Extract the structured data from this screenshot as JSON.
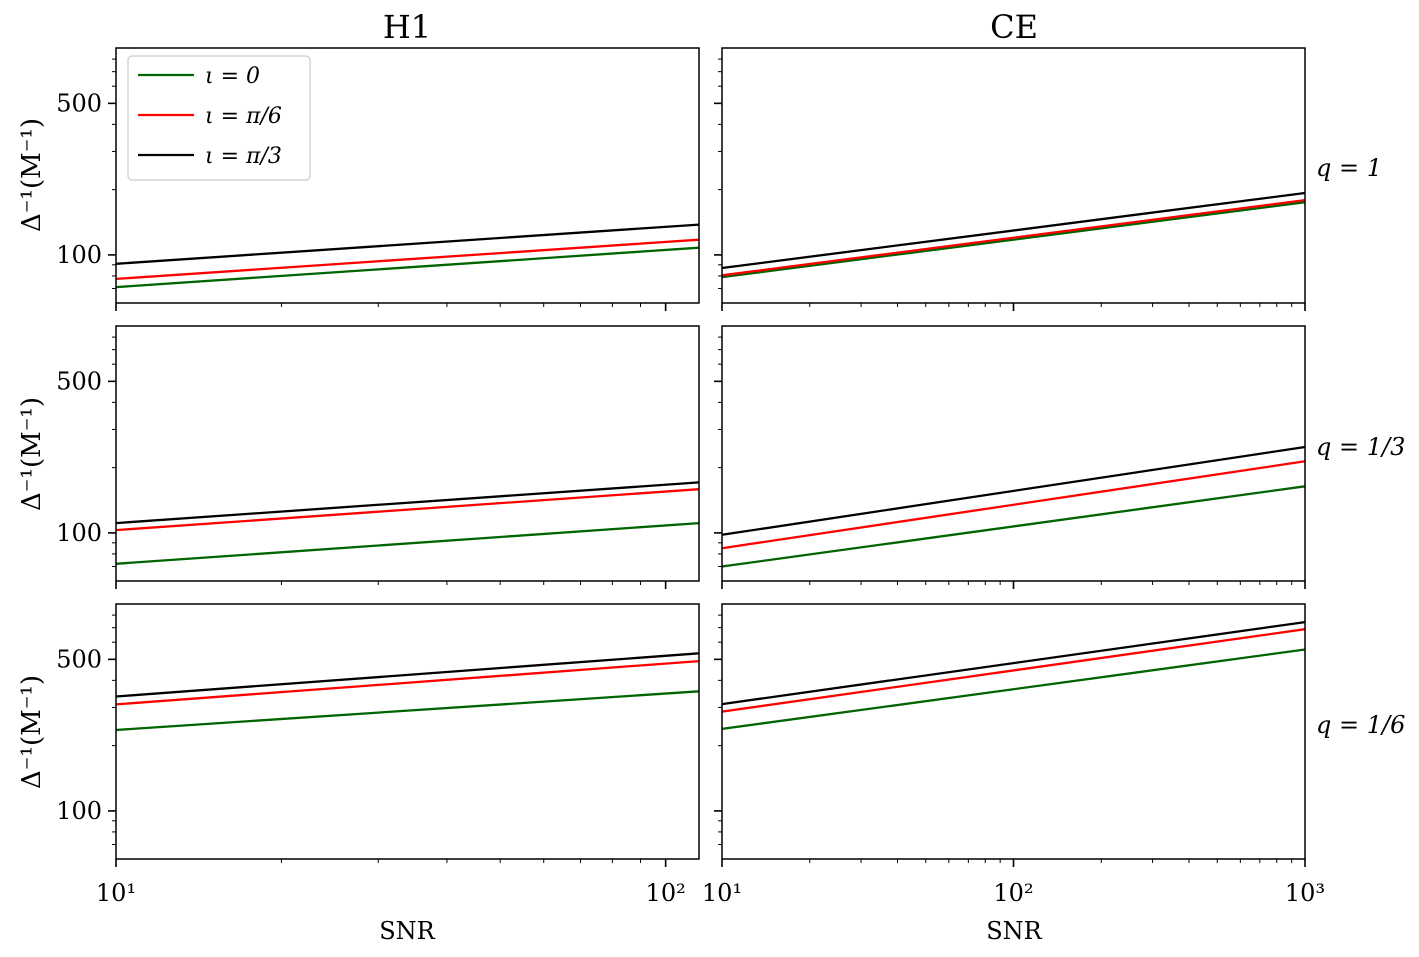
{
  "figure": {
    "column_titles": [
      "H1",
      "CE"
    ],
    "row_labels": [
      "q = 1",
      "q = 1/3",
      "q = 1/6"
    ],
    "ylabel_text": "Δ⁻¹(M⁻¹)",
    "xlabel_text": "SNR"
  },
  "legend": {
    "entries": [
      {
        "label": "ι = 0",
        "color": "#006400"
      },
      {
        "label": "ι = π/6",
        "color": "#ff0000"
      },
      {
        "label": "ι = π/3",
        "color": "#000000"
      }
    ]
  },
  "chart_data": [
    {
      "type": "line",
      "detector": "H1",
      "q": "1",
      "xscale": "log",
      "yscale": "log",
      "xlim": [
        10,
        115
      ],
      "ylim": [
        60,
        900
      ],
      "xlabel": "",
      "ylabel": "Δ⁻¹(M⁻¹)",
      "yticks": [
        {
          "value": 100,
          "label": "100"
        },
        {
          "value": 500,
          "label": "500"
        }
      ],
      "xticks": [],
      "series": [
        {
          "name": "ι = 0",
          "color": "#006400",
          "x": [
            10,
            115
          ],
          "y": [
            71,
            108
          ]
        },
        {
          "name": "ι = π/6",
          "color": "#ff0000",
          "x": [
            10,
            115
          ],
          "y": [
            77.5,
            117.5
          ]
        },
        {
          "name": "ι = π/3",
          "color": "#000000",
          "x": [
            10,
            115
          ],
          "y": [
            91,
            138
          ]
        }
      ]
    },
    {
      "type": "line",
      "detector": "CE",
      "q": "1",
      "xscale": "log",
      "yscale": "log",
      "xlim": [
        10,
        1000
      ],
      "ylim": [
        60,
        900
      ],
      "xlabel": "",
      "ylabel": "",
      "yticks": [
        {
          "value": 100,
          "label": ""
        },
        {
          "value": 500,
          "label": ""
        }
      ],
      "xticks": [],
      "series": [
        {
          "name": "ι = 0",
          "color": "#006400",
          "x": [
            10,
            1000
          ],
          "y": [
            79,
            175
          ]
        },
        {
          "name": "ι = π/6",
          "color": "#ff0000",
          "x": [
            10,
            1000
          ],
          "y": [
            80.5,
            179
          ]
        },
        {
          "name": "ι = π/3",
          "color": "#000000",
          "x": [
            10,
            1000
          ],
          "y": [
            87,
            193
          ]
        }
      ]
    },
    {
      "type": "line",
      "detector": "H1",
      "q": "1/3",
      "xscale": "log",
      "yscale": "log",
      "xlim": [
        10,
        115
      ],
      "ylim": [
        60,
        900
      ],
      "xlabel": "",
      "ylabel": "Δ⁻¹(M⁻¹)",
      "yticks": [
        {
          "value": 100,
          "label": "100"
        },
        {
          "value": 500,
          "label": "500"
        }
      ],
      "xticks": [],
      "series": [
        {
          "name": "ι = 0",
          "color": "#006400",
          "x": [
            10,
            115
          ],
          "y": [
            72,
            111
          ]
        },
        {
          "name": "ι = π/6",
          "color": "#ff0000",
          "x": [
            10,
            115
          ],
          "y": [
            103,
            159
          ]
        },
        {
          "name": "ι = π/3",
          "color": "#000000",
          "x": [
            10,
            115
          ],
          "y": [
            111,
            171
          ]
        }
      ]
    },
    {
      "type": "line",
      "detector": "CE",
      "q": "1/3",
      "xscale": "log",
      "yscale": "log",
      "xlim": [
        10,
        1000
      ],
      "ylim": [
        60,
        900
      ],
      "xlabel": "",
      "ylabel": "",
      "yticks": [
        {
          "value": 100,
          "label": ""
        },
        {
          "value": 500,
          "label": ""
        }
      ],
      "xticks": [],
      "series": [
        {
          "name": "ι = 0",
          "color": "#006400",
          "x": [
            10,
            1000
          ],
          "y": [
            70,
            164
          ]
        },
        {
          "name": "ι = π/6",
          "color": "#ff0000",
          "x": [
            10,
            1000
          ],
          "y": [
            85,
            214
          ]
        },
        {
          "name": "ι = π/3",
          "color": "#000000",
          "x": [
            10,
            1000
          ],
          "y": [
            98,
            249
          ]
        }
      ]
    },
    {
      "type": "line",
      "detector": "H1",
      "q": "1/6",
      "xscale": "log",
      "yscale": "log",
      "xlim": [
        10,
        115
      ],
      "ylim": [
        60,
        900
      ],
      "xlabel": "SNR",
      "ylabel": "Δ⁻¹(M⁻¹)",
      "yticks": [
        {
          "value": 100,
          "label": "100"
        },
        {
          "value": 500,
          "label": "500"
        }
      ],
      "xticks": [
        {
          "value": 10,
          "label": "10¹"
        },
        {
          "value": 100,
          "label": "10²"
        }
      ],
      "series": [
        {
          "name": "ι = 0",
          "color": "#006400",
          "x": [
            10,
            115
          ],
          "y": [
            236,
            356
          ]
        },
        {
          "name": "ι = π/6",
          "color": "#ff0000",
          "x": [
            10,
            115
          ],
          "y": [
            310,
            491
          ]
        },
        {
          "name": "ι = π/3",
          "color": "#000000",
          "x": [
            10,
            115
          ],
          "y": [
            337,
            533
          ]
        }
      ]
    },
    {
      "type": "line",
      "detector": "CE",
      "q": "1/6",
      "xscale": "log",
      "yscale": "log",
      "xlim": [
        10,
        1000
      ],
      "ylim": [
        60,
        900
      ],
      "xlabel": "SNR",
      "ylabel": "",
      "yticks": [
        {
          "value": 100,
          "label": ""
        },
        {
          "value": 500,
          "label": ""
        }
      ],
      "xticks": [
        {
          "value": 10,
          "label": "10¹"
        },
        {
          "value": 100,
          "label": "10²"
        },
        {
          "value": 1000,
          "label": "10³"
        }
      ],
      "series": [
        {
          "name": "ι = 0",
          "color": "#006400",
          "x": [
            10,
            1000
          ],
          "y": [
            239,
            555
          ]
        },
        {
          "name": "ι = π/6",
          "color": "#ff0000",
          "x": [
            10,
            1000
          ],
          "y": [
            287,
            689
          ]
        },
        {
          "name": "ι = π/3",
          "color": "#000000",
          "x": [
            10,
            1000
          ],
          "y": [
            311,
            743
          ]
        }
      ]
    }
  ]
}
